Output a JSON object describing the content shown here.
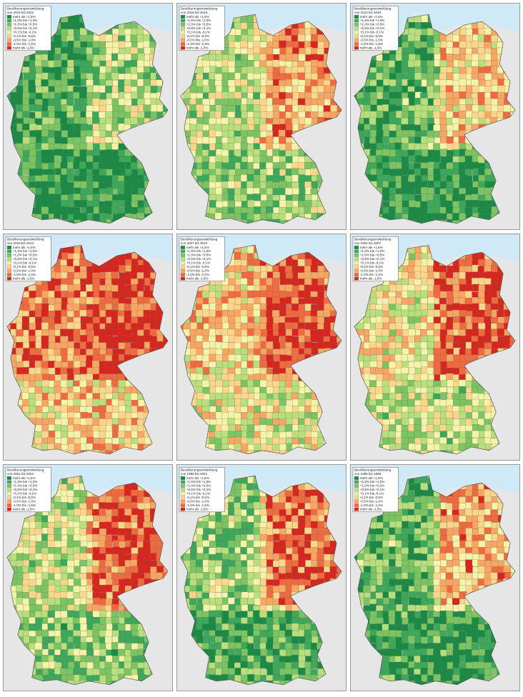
{
  "legend": {
    "title": "Bevölkerungsentwicklung",
    "classes": [
      {
        "label": "mehr als +1,5%",
        "color": "#1a8a45"
      },
      {
        "label": "+1,5% bis +1,0%",
        "color": "#3ea85a"
      },
      {
        "label": "+1,0% bis +0,5%",
        "color": "#7cc462"
      },
      {
        "label": "+0,5% bis +0,1%",
        "color": "#b8df7c"
      },
      {
        "label": "+0,1% bis -0,1%",
        "color": "#f4f3a8"
      },
      {
        "label": "-0,1% bis -0,5%",
        "color": "#fdd68a"
      },
      {
        "label": "-0,5% bis -1,0%",
        "color": "#f9a662"
      },
      {
        "label": "-1,0% bis -1,5%",
        "color": "#ef6b3f"
      },
      {
        "label": "mehr als -1,5%",
        "color": "#d7261e"
      }
    ]
  },
  "panels": [
    {
      "period": "von 2019 bis 2022"
    },
    {
      "period": "von 2016 bis 2019"
    },
    {
      "period": "von 2013 bis 2016"
    },
    {
      "period": "von 2010 bis 2013"
    },
    {
      "period": "von 2007 bis 2010"
    },
    {
      "period": "von 2004 bis 2007"
    },
    {
      "period": "von 2001 bis 2004"
    },
    {
      "period": "von 1998 bis 2001"
    },
    {
      "period": "von 1995 bis 1998"
    }
  ]
}
